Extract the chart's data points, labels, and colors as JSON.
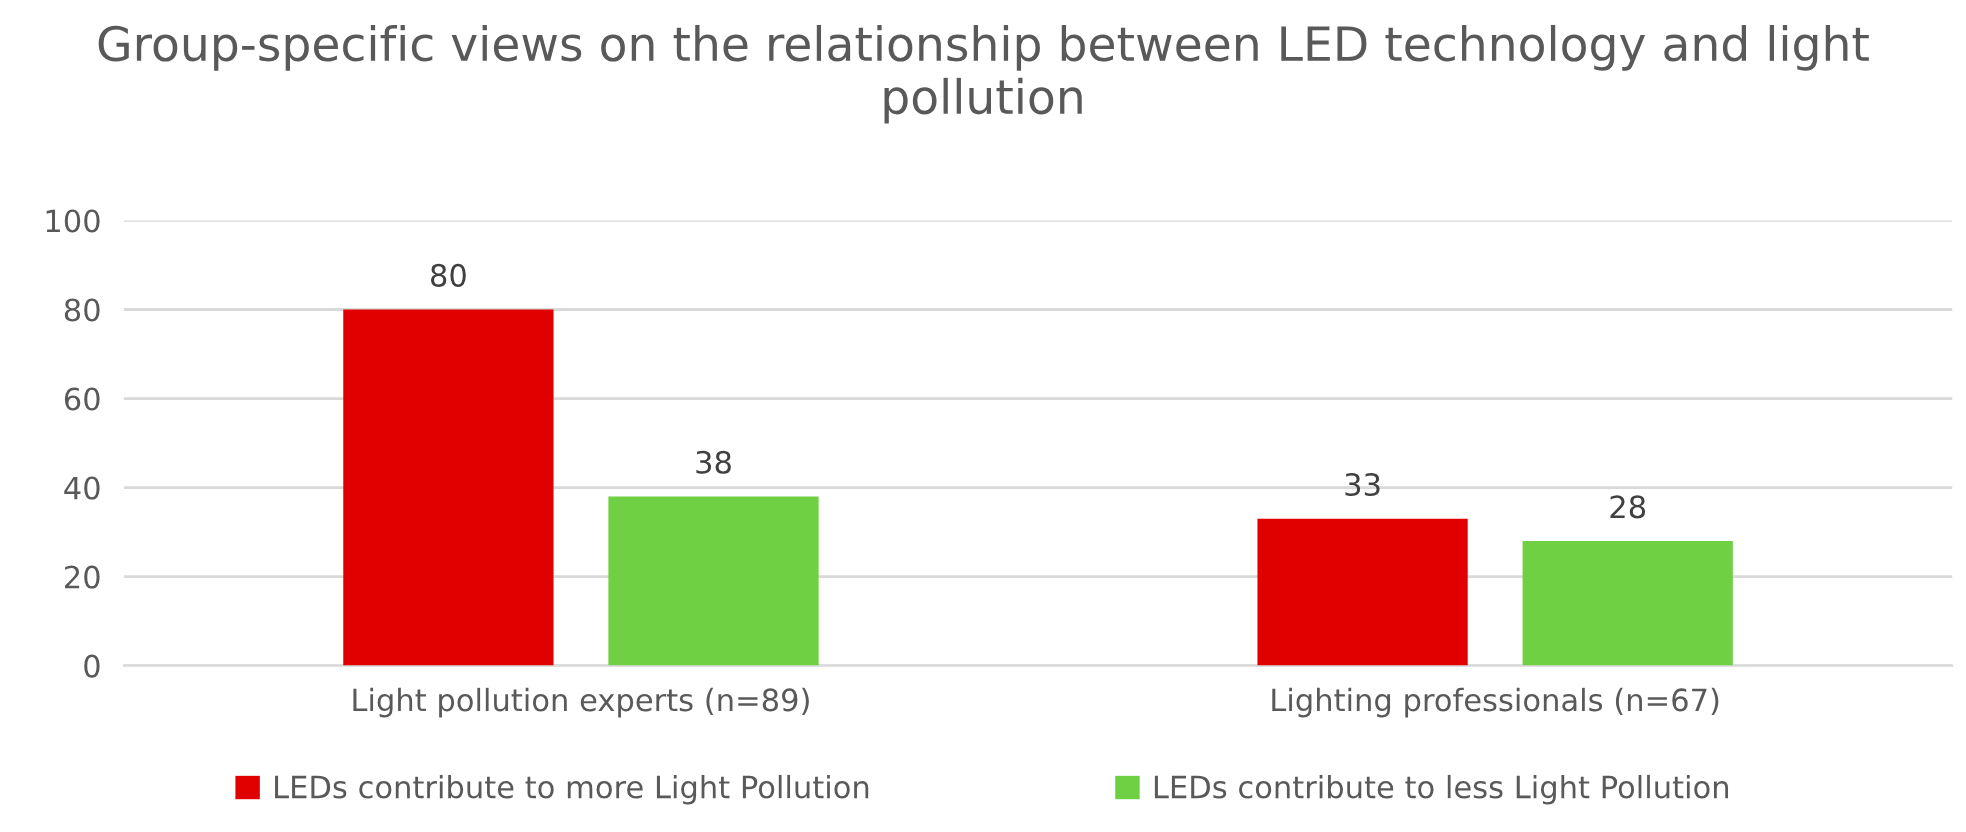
{
  "chart_data": {
    "type": "bar",
    "title": "Group-specific views on the relationship between LED technology and light pollution",
    "categories": [
      "Light pollution experts (n=89)",
      "Lighting professionals (n=67)"
    ],
    "series": [
      {
        "name": "LEDs contribute to more Light Pollution",
        "color": "#e00000",
        "values": [
          80,
          33
        ]
      },
      {
        "name": "LEDs contribute to less Light Pollution",
        "color": "#6fd043",
        "values": [
          38,
          28
        ]
      }
    ],
    "ylim": [
      0,
      100
    ],
    "yticks": [
      0,
      20,
      40,
      60,
      80,
      100
    ],
    "grid": "y",
    "legend": "bottom",
    "data_labels": true
  }
}
